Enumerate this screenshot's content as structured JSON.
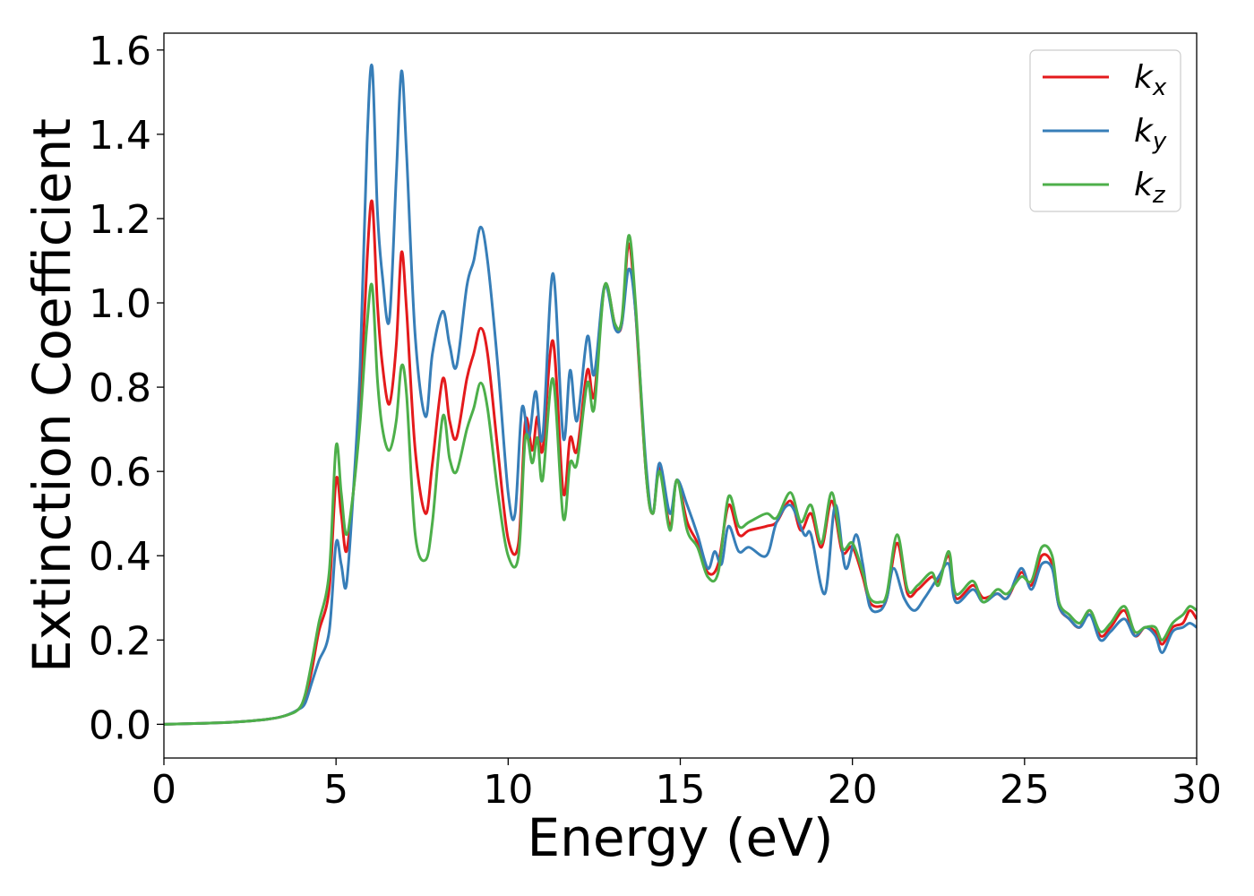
{
  "chart_data": {
    "type": "line",
    "xlabel": "Energy (eV)",
    "ylabel": "Extinction Coefficient",
    "xlim": [
      0,
      30
    ],
    "ylim": [
      -0.08,
      1.64
    ],
    "x_ticks": [
      "0",
      "5",
      "10",
      "15",
      "20",
      "25",
      "30"
    ],
    "y_ticks": [
      "0.0",
      "0.2",
      "0.4",
      "0.6",
      "0.8",
      "1.0",
      "1.2",
      "1.4",
      "1.6"
    ],
    "legend_position": "top-right",
    "grid": false,
    "series": [
      {
        "name": "k",
        "subscript": "x",
        "color": "#e41a1c",
        "points": [
          [
            0,
            0
          ],
          [
            1,
            0.002
          ],
          [
            2,
            0.005
          ],
          [
            3,
            0.012
          ],
          [
            3.5,
            0.02
          ],
          [
            3.9,
            0.035
          ],
          [
            4.1,
            0.06
          ],
          [
            4.3,
            0.13
          ],
          [
            4.5,
            0.22
          ],
          [
            4.8,
            0.32
          ],
          [
            5.0,
            0.58
          ],
          [
            5.15,
            0.5
          ],
          [
            5.3,
            0.41
          ],
          [
            5.5,
            0.55
          ],
          [
            5.7,
            0.75
          ],
          [
            5.9,
            1.1
          ],
          [
            6.05,
            1.24
          ],
          [
            6.2,
            1.0
          ],
          [
            6.35,
            0.85
          ],
          [
            6.55,
            0.76
          ],
          [
            6.75,
            0.9
          ],
          [
            6.9,
            1.12
          ],
          [
            7.05,
            0.98
          ],
          [
            7.3,
            0.65
          ],
          [
            7.6,
            0.5
          ],
          [
            7.8,
            0.62
          ],
          [
            8.1,
            0.82
          ],
          [
            8.3,
            0.72
          ],
          [
            8.5,
            0.68
          ],
          [
            8.8,
            0.82
          ],
          [
            9.0,
            0.88
          ],
          [
            9.2,
            0.94
          ],
          [
            9.4,
            0.88
          ],
          [
            9.7,
            0.65
          ],
          [
            10.0,
            0.44
          ],
          [
            10.3,
            0.43
          ],
          [
            10.5,
            0.72
          ],
          [
            10.7,
            0.65
          ],
          [
            10.85,
            0.73
          ],
          [
            11.0,
            0.65
          ],
          [
            11.3,
            0.91
          ],
          [
            11.6,
            0.55
          ],
          [
            11.8,
            0.68
          ],
          [
            12.0,
            0.65
          ],
          [
            12.3,
            0.84
          ],
          [
            12.5,
            0.78
          ],
          [
            12.8,
            1.04
          ],
          [
            13.1,
            0.95
          ],
          [
            13.3,
            0.95
          ],
          [
            13.5,
            1.14
          ],
          [
            13.7,
            0.98
          ],
          [
            14.0,
            0.6
          ],
          [
            14.2,
            0.5
          ],
          [
            14.4,
            0.61
          ],
          [
            14.7,
            0.47
          ],
          [
            14.9,
            0.58
          ],
          [
            15.2,
            0.48
          ],
          [
            15.5,
            0.43
          ],
          [
            15.8,
            0.36
          ],
          [
            16.1,
            0.38
          ],
          [
            16.4,
            0.52
          ],
          [
            16.7,
            0.45
          ],
          [
            17.0,
            0.46
          ],
          [
            17.5,
            0.47
          ],
          [
            17.8,
            0.48
          ],
          [
            18.2,
            0.53
          ],
          [
            18.5,
            0.46
          ],
          [
            18.8,
            0.5
          ],
          [
            19.1,
            0.42
          ],
          [
            19.4,
            0.53
          ],
          [
            19.7,
            0.41
          ],
          [
            20.0,
            0.42
          ],
          [
            20.3,
            0.35
          ],
          [
            20.5,
            0.29
          ],
          [
            20.8,
            0.28
          ],
          [
            21.0,
            0.3
          ],
          [
            21.3,
            0.43
          ],
          [
            21.6,
            0.31
          ],
          [
            21.9,
            0.32
          ],
          [
            22.3,
            0.35
          ],
          [
            22.5,
            0.34
          ],
          [
            22.8,
            0.4
          ],
          [
            23.0,
            0.3
          ],
          [
            23.5,
            0.33
          ],
          [
            23.8,
            0.3
          ],
          [
            24.2,
            0.31
          ],
          [
            24.5,
            0.3
          ],
          [
            24.9,
            0.36
          ],
          [
            25.2,
            0.33
          ],
          [
            25.5,
            0.4
          ],
          [
            25.8,
            0.38
          ],
          [
            26.0,
            0.28
          ],
          [
            26.3,
            0.25
          ],
          [
            26.6,
            0.23
          ],
          [
            26.9,
            0.27
          ],
          [
            27.2,
            0.21
          ],
          [
            27.5,
            0.23
          ],
          [
            27.9,
            0.27
          ],
          [
            28.2,
            0.21
          ],
          [
            28.5,
            0.23
          ],
          [
            28.8,
            0.22
          ],
          [
            29.0,
            0.19
          ],
          [
            29.3,
            0.23
          ],
          [
            29.6,
            0.24
          ],
          [
            29.8,
            0.27
          ],
          [
            30.0,
            0.25
          ]
        ]
      },
      {
        "name": "k",
        "subscript": "y",
        "color": "#377eb8",
        "points": [
          [
            0,
            0
          ],
          [
            1,
            0.002
          ],
          [
            2,
            0.005
          ],
          [
            3,
            0.012
          ],
          [
            3.5,
            0.02
          ],
          [
            3.9,
            0.035
          ],
          [
            4.1,
            0.05
          ],
          [
            4.3,
            0.1
          ],
          [
            4.5,
            0.15
          ],
          [
            4.8,
            0.22
          ],
          [
            5.0,
            0.43
          ],
          [
            5.15,
            0.38
          ],
          [
            5.3,
            0.33
          ],
          [
            5.5,
            0.55
          ],
          [
            5.7,
            0.85
          ],
          [
            5.9,
            1.38
          ],
          [
            6.05,
            1.56
          ],
          [
            6.2,
            1.22
          ],
          [
            6.35,
            1.06
          ],
          [
            6.55,
            0.96
          ],
          [
            6.75,
            1.3
          ],
          [
            6.9,
            1.55
          ],
          [
            7.05,
            1.35
          ],
          [
            7.3,
            0.92
          ],
          [
            7.6,
            0.73
          ],
          [
            7.8,
            0.88
          ],
          [
            8.1,
            0.98
          ],
          [
            8.3,
            0.9
          ],
          [
            8.5,
            0.85
          ],
          [
            8.8,
            1.04
          ],
          [
            9.0,
            1.1
          ],
          [
            9.2,
            1.18
          ],
          [
            9.4,
            1.1
          ],
          [
            9.7,
            0.85
          ],
          [
            10.0,
            0.55
          ],
          [
            10.2,
            0.5
          ],
          [
            10.4,
            0.75
          ],
          [
            10.6,
            0.68
          ],
          [
            10.8,
            0.79
          ],
          [
            11.0,
            0.68
          ],
          [
            11.3,
            1.07
          ],
          [
            11.6,
            0.68
          ],
          [
            11.8,
            0.84
          ],
          [
            12.0,
            0.72
          ],
          [
            12.3,
            0.92
          ],
          [
            12.5,
            0.83
          ],
          [
            12.8,
            1.04
          ],
          [
            13.1,
            0.94
          ],
          [
            13.3,
            0.95
          ],
          [
            13.5,
            1.08
          ],
          [
            13.7,
            0.98
          ],
          [
            14.0,
            0.62
          ],
          [
            14.2,
            0.5
          ],
          [
            14.4,
            0.62
          ],
          [
            14.7,
            0.5
          ],
          [
            14.9,
            0.58
          ],
          [
            15.2,
            0.52
          ],
          [
            15.5,
            0.45
          ],
          [
            15.8,
            0.37
          ],
          [
            16.0,
            0.41
          ],
          [
            16.2,
            0.38
          ],
          [
            16.4,
            0.47
          ],
          [
            16.7,
            0.41
          ],
          [
            17.0,
            0.42
          ],
          [
            17.5,
            0.4
          ],
          [
            17.8,
            0.48
          ],
          [
            18.2,
            0.52
          ],
          [
            18.6,
            0.45
          ],
          [
            18.8,
            0.45
          ],
          [
            19.2,
            0.31
          ],
          [
            19.5,
            0.52
          ],
          [
            19.8,
            0.37
          ],
          [
            20.1,
            0.45
          ],
          [
            20.3,
            0.38
          ],
          [
            20.5,
            0.28
          ],
          [
            20.8,
            0.27
          ],
          [
            21.0,
            0.3
          ],
          [
            21.2,
            0.37
          ],
          [
            21.5,
            0.3
          ],
          [
            21.8,
            0.27
          ],
          [
            22.1,
            0.3
          ],
          [
            22.5,
            0.35
          ],
          [
            22.8,
            0.38
          ],
          [
            23.0,
            0.29
          ],
          [
            23.5,
            0.32
          ],
          [
            23.8,
            0.29
          ],
          [
            24.2,
            0.31
          ],
          [
            24.5,
            0.3
          ],
          [
            24.9,
            0.37
          ],
          [
            25.2,
            0.32
          ],
          [
            25.5,
            0.38
          ],
          [
            25.8,
            0.37
          ],
          [
            26.0,
            0.28
          ],
          [
            26.3,
            0.25
          ],
          [
            26.6,
            0.23
          ],
          [
            26.9,
            0.26
          ],
          [
            27.2,
            0.2
          ],
          [
            27.5,
            0.22
          ],
          [
            27.9,
            0.25
          ],
          [
            28.2,
            0.21
          ],
          [
            28.5,
            0.23
          ],
          [
            28.8,
            0.21
          ],
          [
            29.0,
            0.17
          ],
          [
            29.3,
            0.22
          ],
          [
            29.6,
            0.23
          ],
          [
            29.8,
            0.24
          ],
          [
            30.0,
            0.23
          ]
        ]
      },
      {
        "name": "k",
        "subscript": "z",
        "color": "#4daf4a",
        "points": [
          [
            0,
            0
          ],
          [
            1,
            0.002
          ],
          [
            2,
            0.005
          ],
          [
            3,
            0.012
          ],
          [
            3.5,
            0.02
          ],
          [
            3.9,
            0.035
          ],
          [
            4.1,
            0.07
          ],
          [
            4.3,
            0.15
          ],
          [
            4.5,
            0.24
          ],
          [
            4.8,
            0.36
          ],
          [
            5.0,
            0.66
          ],
          [
            5.15,
            0.55
          ],
          [
            5.3,
            0.45
          ],
          [
            5.5,
            0.55
          ],
          [
            5.7,
            0.72
          ],
          [
            5.9,
            0.95
          ],
          [
            6.05,
            1.04
          ],
          [
            6.2,
            0.82
          ],
          [
            6.35,
            0.7
          ],
          [
            6.55,
            0.65
          ],
          [
            6.75,
            0.72
          ],
          [
            6.9,
            0.85
          ],
          [
            7.05,
            0.78
          ],
          [
            7.3,
            0.45
          ],
          [
            7.6,
            0.39
          ],
          [
            7.8,
            0.48
          ],
          [
            8.1,
            0.73
          ],
          [
            8.3,
            0.63
          ],
          [
            8.5,
            0.6
          ],
          [
            8.8,
            0.7
          ],
          [
            9.0,
            0.75
          ],
          [
            9.2,
            0.81
          ],
          [
            9.4,
            0.75
          ],
          [
            9.7,
            0.55
          ],
          [
            10.0,
            0.4
          ],
          [
            10.3,
            0.4
          ],
          [
            10.5,
            0.68
          ],
          [
            10.7,
            0.62
          ],
          [
            10.85,
            0.68
          ],
          [
            11.0,
            0.58
          ],
          [
            11.3,
            0.82
          ],
          [
            11.6,
            0.49
          ],
          [
            11.8,
            0.62
          ],
          [
            12.0,
            0.62
          ],
          [
            12.3,
            0.81
          ],
          [
            12.5,
            0.75
          ],
          [
            12.8,
            1.04
          ],
          [
            13.1,
            0.95
          ],
          [
            13.3,
            0.96
          ],
          [
            13.5,
            1.16
          ],
          [
            13.7,
            1.0
          ],
          [
            14.0,
            0.6
          ],
          [
            14.2,
            0.5
          ],
          [
            14.4,
            0.6
          ],
          [
            14.7,
            0.46
          ],
          [
            14.9,
            0.58
          ],
          [
            15.2,
            0.46
          ],
          [
            15.5,
            0.42
          ],
          [
            15.8,
            0.35
          ],
          [
            16.1,
            0.36
          ],
          [
            16.4,
            0.54
          ],
          [
            16.7,
            0.47
          ],
          [
            17.0,
            0.48
          ],
          [
            17.5,
            0.5
          ],
          [
            17.8,
            0.49
          ],
          [
            18.2,
            0.55
          ],
          [
            18.5,
            0.48
          ],
          [
            18.8,
            0.52
          ],
          [
            19.1,
            0.43
          ],
          [
            19.4,
            0.55
          ],
          [
            19.7,
            0.42
          ],
          [
            20.0,
            0.43
          ],
          [
            20.3,
            0.36
          ],
          [
            20.5,
            0.3
          ],
          [
            20.8,
            0.29
          ],
          [
            21.0,
            0.31
          ],
          [
            21.3,
            0.45
          ],
          [
            21.6,
            0.32
          ],
          [
            21.9,
            0.33
          ],
          [
            22.3,
            0.36
          ],
          [
            22.5,
            0.33
          ],
          [
            22.8,
            0.41
          ],
          [
            23.0,
            0.31
          ],
          [
            23.5,
            0.34
          ],
          [
            23.8,
            0.29
          ],
          [
            24.2,
            0.32
          ],
          [
            24.5,
            0.31
          ],
          [
            24.9,
            0.35
          ],
          [
            25.2,
            0.34
          ],
          [
            25.5,
            0.42
          ],
          [
            25.8,
            0.4
          ],
          [
            26.0,
            0.29
          ],
          [
            26.3,
            0.26
          ],
          [
            26.6,
            0.24
          ],
          [
            26.9,
            0.27
          ],
          [
            27.2,
            0.22
          ],
          [
            27.5,
            0.24
          ],
          [
            27.9,
            0.28
          ],
          [
            28.2,
            0.22
          ],
          [
            28.5,
            0.23
          ],
          [
            28.8,
            0.23
          ],
          [
            29.0,
            0.2
          ],
          [
            29.3,
            0.24
          ],
          [
            29.6,
            0.26
          ],
          [
            29.8,
            0.28
          ],
          [
            30.0,
            0.27
          ]
        ]
      }
    ]
  }
}
